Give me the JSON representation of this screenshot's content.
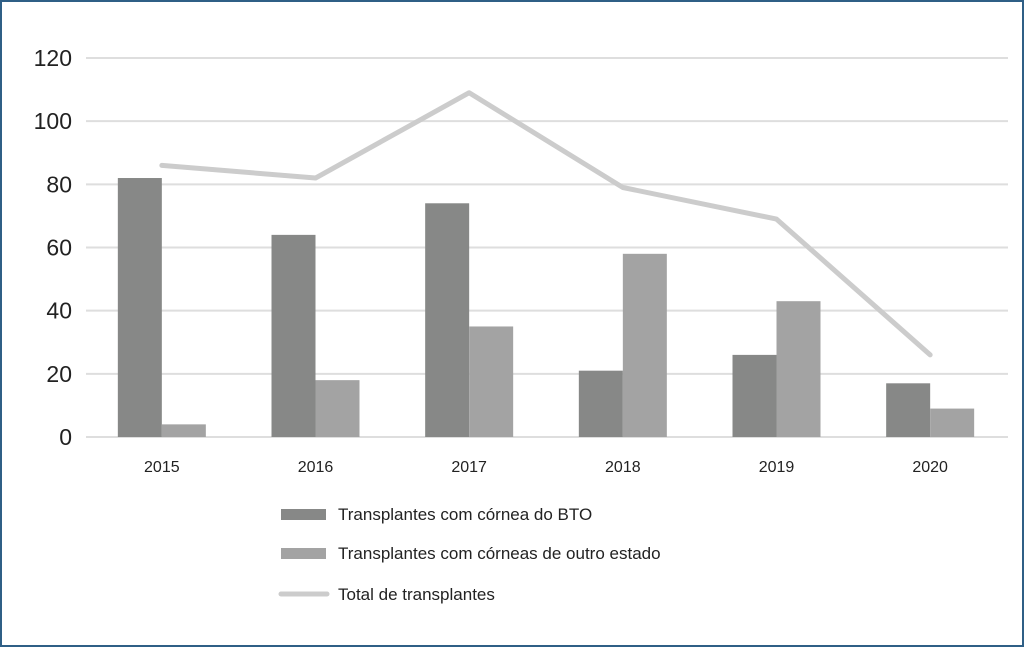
{
  "chart_data": {
    "type": "bar",
    "title": "",
    "xlabel": "",
    "ylabel": "",
    "ylim": [
      0,
      120
    ],
    "yticks": [
      0,
      20,
      40,
      60,
      80,
      100,
      120
    ],
    "grid": true,
    "categories": [
      "2015",
      "2016",
      "2017",
      "2018",
      "2019",
      "2020"
    ],
    "series": [
      {
        "name": "Transplantes com córnea do BTO",
        "kind": "bar",
        "color": "#878887",
        "values": [
          82,
          64,
          74,
          21,
          26,
          17
        ]
      },
      {
        "name": "Transplantes com córneas de outro estado",
        "kind": "bar",
        "color": "#a3a3a3",
        "values": [
          4,
          18,
          35,
          58,
          43,
          9
        ]
      },
      {
        "name": "Total de transplantes",
        "kind": "line",
        "color": "#cccccc",
        "values": [
          86,
          82,
          109,
          79,
          69,
          26
        ]
      }
    ],
    "legend_position": "bottom"
  },
  "colors": {
    "frame_border": "#2f5f86",
    "gridline": "#dedede"
  }
}
